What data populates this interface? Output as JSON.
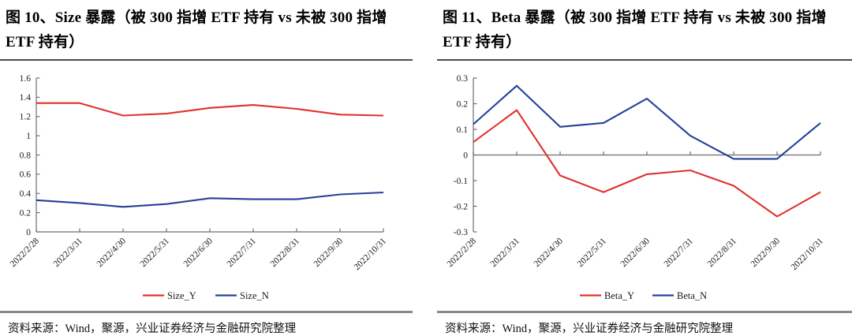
{
  "colors": {
    "series_red": "#e0322c",
    "series_blue": "#26409a",
    "axis_gray": "#6e6e6e",
    "title_rule": "#4a4a4a",
    "bottom_rule": "#8a8a8a"
  },
  "panels": [
    {
      "title": "图 10、Size 暴露（被 300 指增 ETF 持有  vs  未被 300 指增 ETF 持有）",
      "source_note": "资料来源：Wind，聚源，兴业证券经济与金融研究院整理"
    },
    {
      "title": "图 11、Beta 暴露（被 300 指增 ETF 持有  vs  未被 300 指增 ETF 持有）",
      "source_note": "资料来源：Wind，聚源，兴业证券经济与金融研究院整理"
    }
  ],
  "chart_data": [
    {
      "type": "line",
      "title": "Size 暴露（被 300 指增 ETF 持有 vs 未被 300 指增 ETF 持有）",
      "x": [
        "2022/2/28",
        "2022/3/31",
        "2022/4/30",
        "2022/5/31",
        "2022/6/30",
        "2022/7/31",
        "2022/8/31",
        "2022/9/30",
        "2022/10/31"
      ],
      "series": [
        {
          "name": "Size_Y",
          "color": "#e0322c",
          "values": [
            1.34,
            1.34,
            1.21,
            1.23,
            1.29,
            1.32,
            1.28,
            1.22,
            1.21
          ]
        },
        {
          "name": "Size_N",
          "color": "#26409a",
          "values": [
            0.33,
            0.3,
            0.26,
            0.29,
            0.35,
            0.34,
            0.34,
            0.39,
            0.41
          ]
        }
      ],
      "ylim": [
        0,
        1.6
      ],
      "yticks": [
        "0",
        "0.2",
        "0.4",
        "0.6",
        "0.8",
        "1",
        "1.2",
        "1.4",
        "1.6"
      ],
      "xlabel": "",
      "ylabel": "",
      "grid": false,
      "legend_position": "bottom",
      "xlabel_rotation": -45
    },
    {
      "type": "line",
      "title": "Beta 暴露（被 300 指增 ETF 持有 vs 未被 300 指增 ETF 持有）",
      "x": [
        "2022/2/28",
        "2022/3/31",
        "2022/4/30",
        "2022/5/31",
        "2022/6/30",
        "2022/7/31",
        "2022/8/31",
        "2022/9/30",
        "2022/10/31"
      ],
      "series": [
        {
          "name": "Beta_Y",
          "color": "#e0322c",
          "values": [
            0.05,
            0.175,
            -0.08,
            -0.145,
            -0.075,
            -0.06,
            -0.12,
            -0.24,
            -0.145
          ]
        },
        {
          "name": "Beta_N",
          "color": "#26409a",
          "values": [
            0.12,
            0.27,
            0.11,
            0.125,
            0.22,
            0.075,
            -0.015,
            -0.015,
            0.125
          ]
        }
      ],
      "ylim": [
        -0.3,
        0.3
      ],
      "yticks": [
        "-0.3",
        "-0.2",
        "-0.1",
        "0",
        "0.1",
        "0.2",
        "0.3"
      ],
      "xlabel": "",
      "ylabel": "",
      "grid": false,
      "legend_position": "bottom",
      "xlabel_rotation": -45
    }
  ]
}
